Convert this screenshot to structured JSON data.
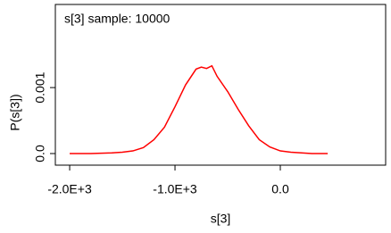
{
  "chart_data": {
    "type": "line",
    "title": "s[3] sample: 10000",
    "x_label": "s[3]",
    "y_label": "P(s[3])",
    "x": [
      -2000,
      -1800,
      -1600,
      -1500,
      -1400,
      -1300,
      -1200,
      -1100,
      -1000,
      -900,
      -800,
      -750,
      -700,
      -650,
      -600,
      -500,
      -400,
      -300,
      -200,
      -100,
      0,
      100,
      200,
      300,
      400,
      450
    ],
    "series": [
      {
        "name": "s[3]",
        "color": "#ff0000",
        "values": [
          0,
          0,
          1e-05,
          2e-05,
          4e-05,
          9e-05,
          0.00021,
          0.0004,
          0.00071,
          0.00104,
          0.00128,
          0.00131,
          0.00129,
          0.00133,
          0.00117,
          0.00094,
          0.00067,
          0.00042,
          0.00021,
          0.0001,
          4e-05,
          2e-05,
          1e-05,
          0,
          0,
          0
        ]
      }
    ],
    "xlim": [
      -2136,
      1000
    ],
    "ylim": [
      -0.000176,
      0.00226
    ],
    "xticks": [
      {
        "value": -2000,
        "label": "-2.0E+3"
      },
      {
        "value": -1000,
        "label": "-1.0E+3"
      },
      {
        "value": 0,
        "label": "0.0"
      }
    ],
    "yticks": [
      {
        "value": 0,
        "label": "0.0"
      },
      0.001
    ]
  }
}
